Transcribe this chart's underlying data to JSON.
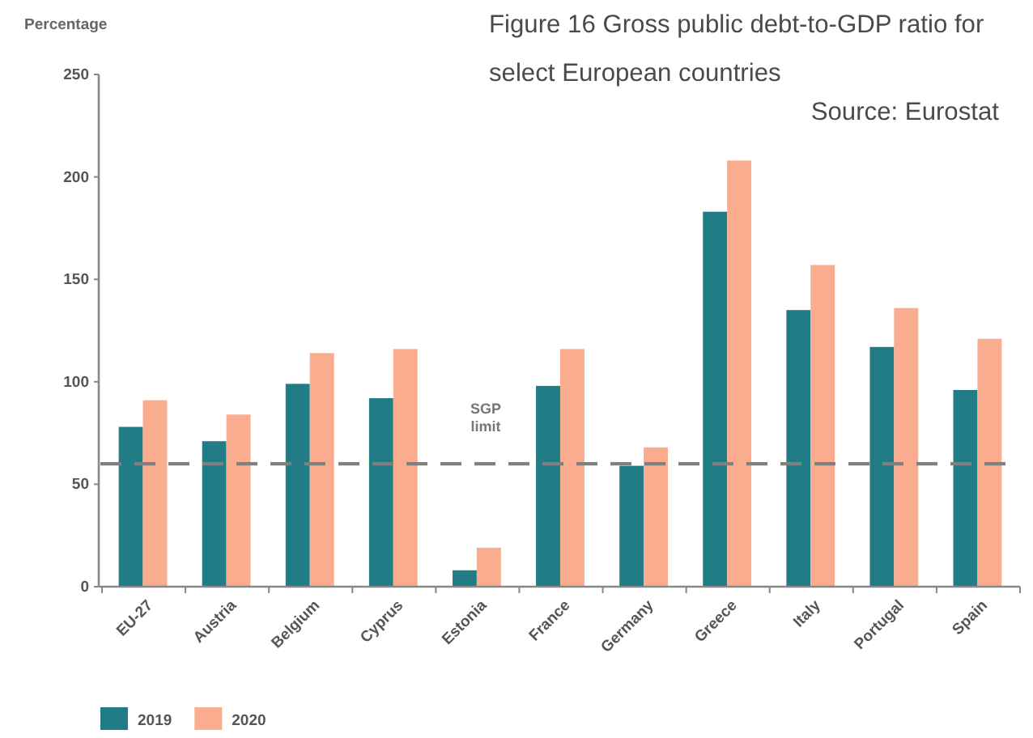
{
  "chart_data": {
    "type": "bar",
    "title": "Figure 16 Gross public debt-to-GDP ratio for select European countries",
    "ylabel": "Percentage",
    "annotations": [
      "Source: Eurostat"
    ],
    "categories": [
      "EU-27",
      "Austria",
      "Belgium",
      "Cyprus",
      "Estonia",
      "France",
      "Germany",
      "Greece",
      "Italy",
      "Portugal",
      "Spain"
    ],
    "series": [
      {
        "name": "2019",
        "color": "#217c86",
        "values": [
          78,
          71,
          99,
          92,
          8,
          98,
          59,
          183,
          135,
          117,
          96
        ]
      },
      {
        "name": "2020",
        "color": "#f9ad8e",
        "values": [
          91,
          84,
          114,
          116,
          19,
          116,
          68,
          208,
          157,
          136,
          121
        ]
      }
    ],
    "ylim": [
      0,
      250
    ],
    "yticks": [
      0,
      50,
      100,
      150,
      200,
      250
    ],
    "grid": false,
    "legend": "bottom left",
    "ref_lines": [
      {
        "axis": "y",
        "value": 60,
        "label": "SGP limit",
        "color": "#808080",
        "line_style": "dashed"
      }
    ]
  }
}
